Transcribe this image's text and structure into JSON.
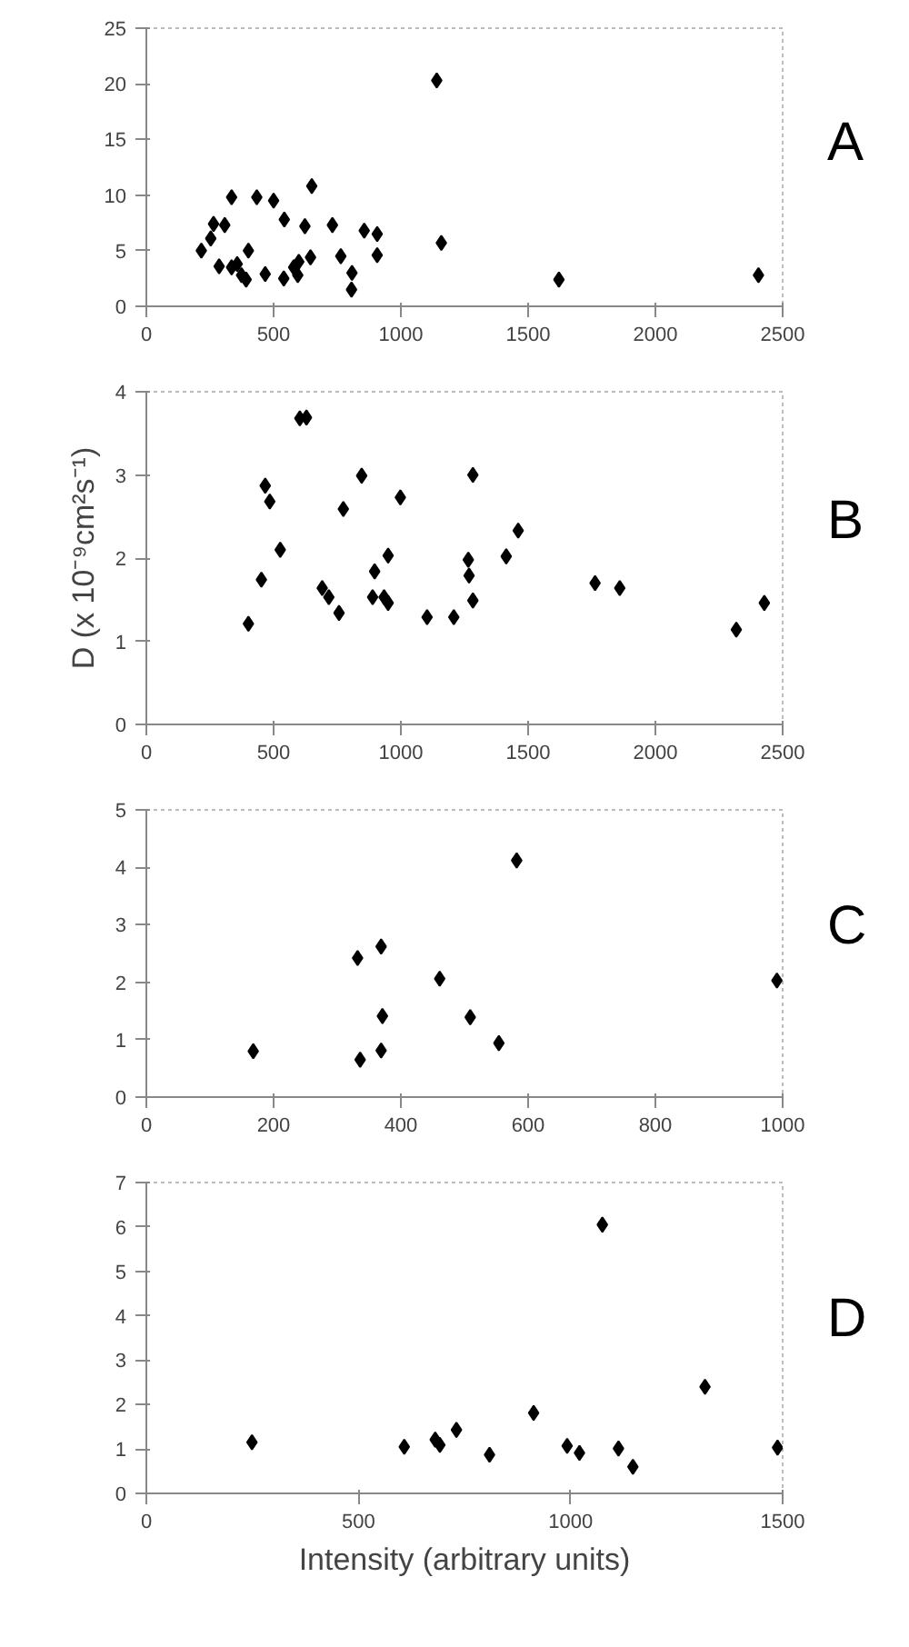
{
  "chart_data": [
    {
      "type": "scatter",
      "title": "A",
      "marker": "diamond",
      "grid": false,
      "xlim": [
        0,
        2500
      ],
      "ylim": [
        0,
        25
      ],
      "xticks": [
        0,
        500,
        1000,
        1500,
        2000,
        2500
      ],
      "yticks": [
        0,
        5,
        10,
        15,
        20,
        25
      ],
      "series": [
        {
          "color": "#000000",
          "x": [
            216,
            253,
            264,
            286,
            308,
            335,
            335,
            357,
            374,
            392,
            401,
            434,
            467,
            500,
            542,
            579,
            595,
            540,
            599,
            623,
            650,
            645,
            731,
            764,
            808,
            806,
            856,
            907,
            907,
            1141,
            1159,
            1621,
            2405
          ],
          "values": [
            5.0,
            6.1,
            7.4,
            3.6,
            7.3,
            9.8,
            3.5,
            3.8,
            2.8,
            2.4,
            5.0,
            9.8,
            2.9,
            9.5,
            7.8,
            3.5,
            2.8,
            2.5,
            4.0,
            7.2,
            10.8,
            4.4,
            7.3,
            4.5,
            3.0,
            1.5,
            6.8,
            6.5,
            4.6,
            20.3,
            5.7,
            2.4,
            2.8
          ]
        }
      ]
    },
    {
      "type": "scatter",
      "title": "B",
      "ylabel": "D (x 10⁻⁹cm²s⁻¹)",
      "marker": "diamond",
      "grid": false,
      "xlim": [
        0,
        2500
      ],
      "ylim": [
        0,
        4
      ],
      "xticks": [
        0,
        500,
        1000,
        1500,
        2000,
        2500
      ],
      "yticks": [
        0,
        1,
        2,
        3,
        4
      ],
      "series": [
        {
          "color": "#000000",
          "x": [
            401,
            452,
            467,
            485,
            526,
            603,
            629,
            691,
            717,
            757,
            774,
            846,
            889,
            897,
            950,
            934,
            950,
            998,
            1103,
            1208,
            1265,
            1268,
            1283,
            1283,
            1414,
            1461,
            1763,
            1860,
            2318,
            2428
          ],
          "values": [
            1.21,
            1.74,
            2.87,
            2.68,
            2.1,
            3.68,
            3.69,
            1.64,
            1.53,
            1.34,
            2.59,
            2.99,
            1.53,
            1.84,
            2.03,
            1.53,
            1.46,
            2.73,
            1.29,
            1.29,
            1.98,
            1.79,
            3.0,
            1.49,
            2.02,
            2.33,
            1.7,
            1.64,
            1.14,
            1.46
          ]
        }
      ]
    },
    {
      "type": "scatter",
      "title": "C",
      "marker": "diamond",
      "grid": false,
      "xlim": [
        0,
        1000
      ],
      "ylim": [
        0,
        5
      ],
      "xticks": [
        0,
        200,
        400,
        600,
        800,
        1000
      ],
      "yticks": [
        0,
        1,
        2,
        3,
        4,
        5
      ],
      "series": [
        {
          "color": "#000000",
          "x": [
            168,
            332,
            336,
            369,
            371,
            369,
            461,
            509,
            554,
            582,
            991
          ],
          "values": [
            0.8,
            2.42,
            0.65,
            2.62,
            1.41,
            0.81,
            2.06,
            1.39,
            0.94,
            4.12,
            2.03
          ]
        }
      ]
    },
    {
      "type": "scatter",
      "title": "D",
      "xlabel": "Intensity (arbitrary units)",
      "marker": "diamond",
      "grid": false,
      "xlim": [
        0,
        1500
      ],
      "ylim": [
        0,
        7
      ],
      "xticks": [
        0,
        500,
        1000,
        1500
      ],
      "yticks": [
        0,
        1,
        2,
        3,
        4,
        5,
        6,
        7
      ],
      "series": [
        {
          "color": "#000000",
          "x": [
            249,
            608,
            681,
            692,
            731,
            809,
            913,
            992,
            1021,
            1075,
            1113,
            1147,
            1317,
            1488
          ],
          "values": [
            1.15,
            1.05,
            1.21,
            1.09,
            1.43,
            0.87,
            1.81,
            1.07,
            0.91,
            6.05,
            1.01,
            0.6,
            2.4,
            1.03
          ]
        }
      ]
    }
  ]
}
